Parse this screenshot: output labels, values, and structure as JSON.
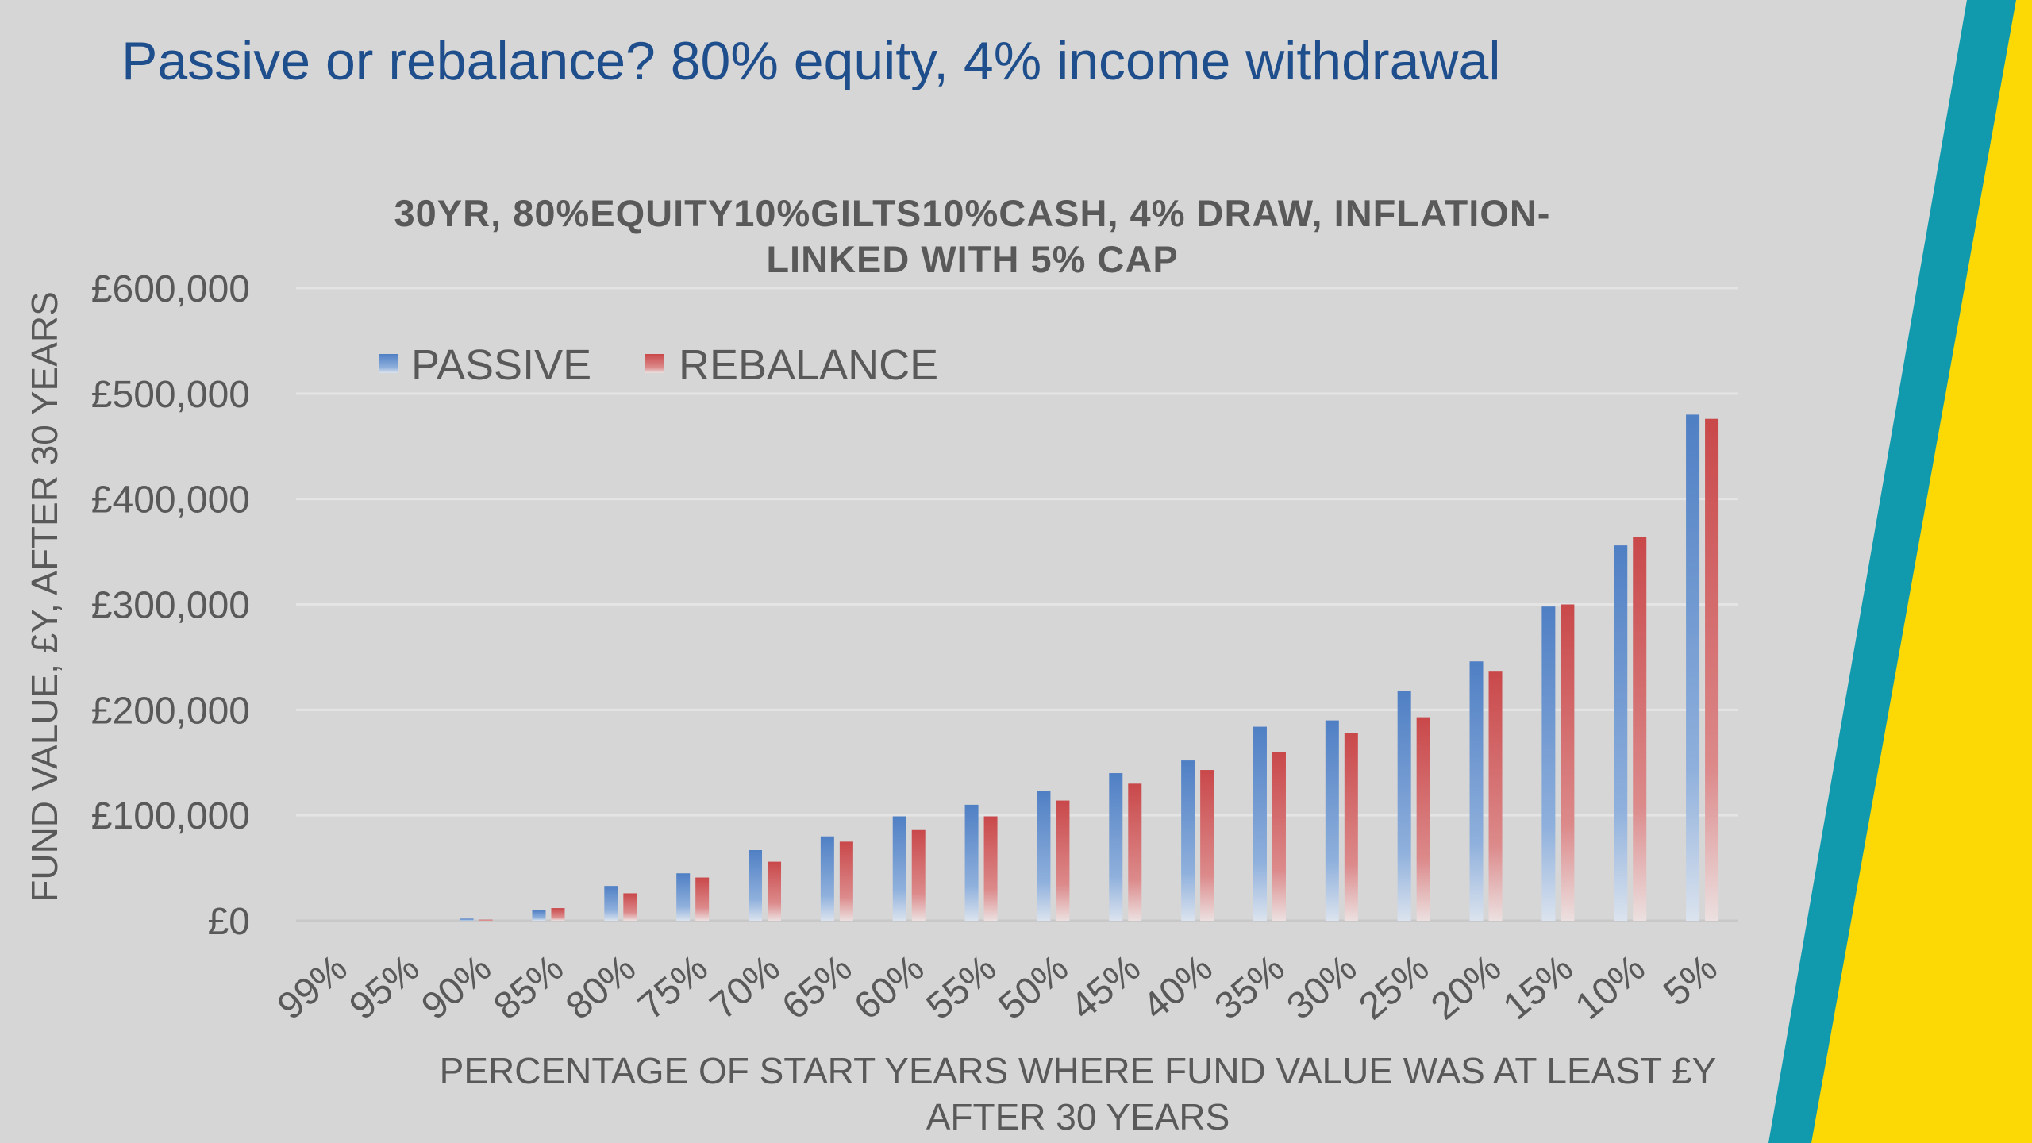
{
  "slide": {
    "title": "Passive or rebalance? 80% equity, 4% income withdrawal"
  },
  "colors": {
    "background": "#d6d6d6",
    "title": "#1f4e8c",
    "passive": "#4f7fc4",
    "rebalance": "#c9484a",
    "accent_teal": "#119aad",
    "accent_yellow": "#fcd905"
  },
  "chart_data": {
    "type": "bar",
    "title_lines": [
      "30YR, 80%EQUITY10%GILTS10%CASH, 4% DRAW, INFLATION-",
      "LINKED WITH 5% CAP"
    ],
    "categories": [
      "99%",
      "95%",
      "90%",
      "85%",
      "80%",
      "75%",
      "70%",
      "65%",
      "60%",
      "55%",
      "50%",
      "45%",
      "40%",
      "35%",
      "30%",
      "25%",
      "20%",
      "15%",
      "10%",
      "5%"
    ],
    "series": [
      {
        "name": "PASSIVE",
        "values": [
          0,
          0,
          2000,
          10000,
          33000,
          45000,
          67000,
          80000,
          99000,
          110000,
          123000,
          140000,
          152000,
          184000,
          190000,
          218000,
          246000,
          298000,
          356000,
          480000
        ]
      },
      {
        "name": "REBALANCE",
        "values": [
          0,
          0,
          1000,
          12000,
          26000,
          41000,
          56000,
          75000,
          86000,
          99000,
          114000,
          130000,
          143000,
          160000,
          178000,
          193000,
          237000,
          300000,
          364000,
          476000
        ]
      }
    ],
    "yticks": [
      "£0",
      "£100,000",
      "£200,000",
      "£300,000",
      "£400,000",
      "£500,000",
      "£600,000"
    ],
    "ylim": [
      0,
      600000
    ],
    "xlabel_lines": [
      "PERCENTAGE OF START YEARS WHERE FUND VALUE WAS AT LEAST £Y",
      "AFTER 30 YEARS"
    ],
    "ylabel": "FUND VALUE, £Y, AFTER 30 YEARS",
    "grid": true,
    "legend_position": "top-left"
  }
}
